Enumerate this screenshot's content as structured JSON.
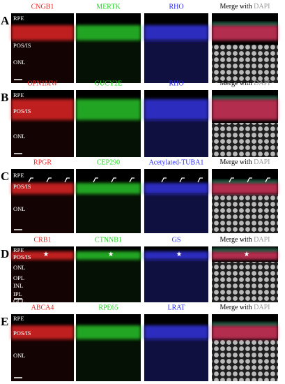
{
  "panels": [
    {
      "letter": "A",
      "stains": [
        "CNGB1",
        "MERTK",
        "RHO"
      ],
      "merge": "Merge with",
      "dapi": "DAPI",
      "layers": [
        "RPE",
        "POS/IS",
        "ONL"
      ]
    },
    {
      "letter": "B",
      "stains": [
        "OPN1MW",
        "GUCY2E",
        "RHO"
      ],
      "merge": "Merge with",
      "dapi": "DAPI",
      "layers": [
        "RPE",
        "POS/IS",
        "ONL"
      ]
    },
    {
      "letter": "C",
      "stains": [
        "RPGR",
        "CEP290",
        "Acetylated-TUBA1"
      ],
      "merge": "Merge with",
      "dapi": "DAPI",
      "layers": [
        "RPE",
        "POS/IS",
        "ONL"
      ]
    },
    {
      "letter": "D",
      "stains": [
        "CRB1",
        "CTNNB1",
        "GS"
      ],
      "merge": "Merge with",
      "dapi": "DAPI",
      "layers": [
        "RPE",
        "POS/IS",
        "ONL",
        "OPL",
        "INL",
        "IPL",
        "GCL"
      ]
    },
    {
      "letter": "E",
      "stains": [
        "ABCA4",
        "RPE65",
        "LRAT"
      ],
      "merge": "Merge with",
      "dapi": "DAPI",
      "layers": [
        "RPE",
        "POS/IS",
        "ONL"
      ]
    }
  ]
}
